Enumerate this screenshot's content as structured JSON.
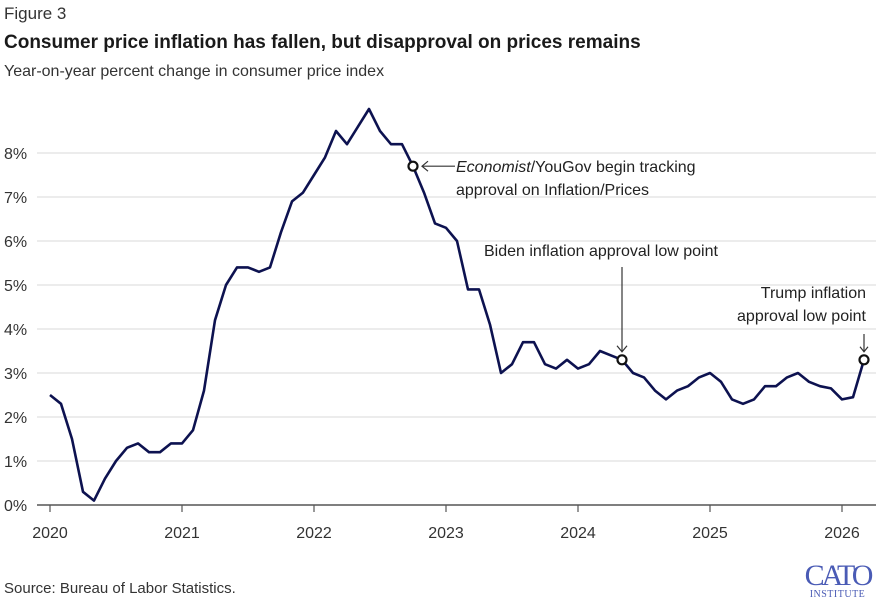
{
  "figure_label": "Figure 3",
  "source": "Source: Bureau of Labor Statistics.",
  "logo": {
    "main": "CATO",
    "sub": "INSTITUTE"
  },
  "colors": {
    "line": "#0d1250",
    "grid": "#e6e6e6",
    "axis": "#555555"
  },
  "chart_data": {
    "type": "line",
    "title": "Consumer price inflation has fallen, but disapproval on prices remains",
    "subtitle": "Year-on-year percent change in consumer price index",
    "xlabel": "",
    "ylabel": "",
    "ylim": [
      0,
      9
    ],
    "yticks": [
      0,
      1,
      2,
      3,
      4,
      5,
      6,
      7,
      8
    ],
    "ytick_labels": [
      "0%",
      "1%",
      "2%",
      "3%",
      "4%",
      "5%",
      "6%",
      "7%",
      "8%"
    ],
    "xticks": [
      "2020",
      "2021",
      "2022",
      "2023",
      "2024",
      "2025",
      "2026"
    ],
    "grid": true,
    "x_start": "2020-01",
    "frequency": "monthly",
    "series": [
      {
        "name": "CPI year-on-year % change",
        "values": [
          2.5,
          2.3,
          1.5,
          0.3,
          0.1,
          0.6,
          1.0,
          1.3,
          1.4,
          1.2,
          1.2,
          1.4,
          1.4,
          1.7,
          2.6,
          4.2,
          5.0,
          5.4,
          5.4,
          5.3,
          5.4,
          6.2,
          6.9,
          7.1,
          7.5,
          7.9,
          8.5,
          8.2,
          8.6,
          9.0,
          8.5,
          8.2,
          8.2,
          7.7,
          7.1,
          6.4,
          6.3,
          6.0,
          4.9,
          4.9,
          4.1,
          3.0,
          3.2,
          3.7,
          3.7,
          3.2,
          3.1,
          3.3,
          3.1,
          3.2,
          3.5,
          3.4,
          3.3,
          3.0,
          2.9,
          2.6,
          2.4,
          2.6,
          2.7,
          2.9,
          3.0,
          2.8,
          2.4,
          2.3,
          2.4,
          2.7,
          2.7,
          2.9,
          3.0,
          2.8,
          2.7,
          2.65,
          2.4,
          2.45,
          3.3
        ]
      }
    ],
    "annotations": [
      {
        "index": 33,
        "lines": [
          "Economist/YouGov begin tracking",
          "approval on Inflation/Prices"
        ],
        "italic_prefix": "Economist"
      },
      {
        "index": 52,
        "lines": [
          "Biden inflation approval low point"
        ]
      },
      {
        "index": 74,
        "lines": [
          "Trump inflation",
          "approval low point"
        ]
      }
    ]
  }
}
